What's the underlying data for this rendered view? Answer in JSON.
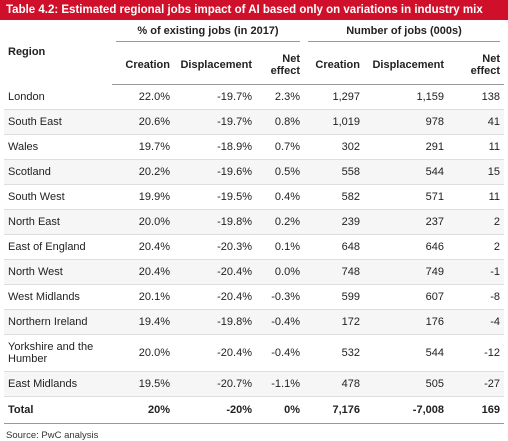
{
  "header": {
    "title": "Table 4.2: Estimated regional jobs impact of AI based only on variations in industry mix"
  },
  "table": {
    "region_header": "Region",
    "groups": [
      "% of existing jobs (in 2017)",
      "Number of jobs (000s)"
    ],
    "columns": [
      "Creation",
      "Displacement",
      "Net effect",
      "Creation",
      "Displacement",
      "Net effect"
    ],
    "rows": [
      [
        "London",
        "22.0%",
        "-19.7%",
        "2.3%",
        "1,297",
        "1,159",
        "138"
      ],
      [
        "South East",
        "20.6%",
        "-19.7%",
        "0.8%",
        "1,019",
        "978",
        "41"
      ],
      [
        "Wales",
        "19.7%",
        "-18.9%",
        "0.7%",
        "302",
        "291",
        "11"
      ],
      [
        "Scotland",
        "20.2%",
        "-19.6%",
        "0.5%",
        "558",
        "544",
        "15"
      ],
      [
        "South West",
        "19.9%",
        "-19.5%",
        "0.4%",
        "582",
        "571",
        "11"
      ],
      [
        "North East",
        "20.0%",
        "-19.8%",
        "0.2%",
        "239",
        "237",
        "2"
      ],
      [
        "East of England",
        "20.4%",
        "-20.3%",
        "0.1%",
        "648",
        "646",
        "2"
      ],
      [
        "North West",
        "20.4%",
        "-20.4%",
        "0.0%",
        "748",
        "749",
        "-1"
      ],
      [
        "West Midlands",
        "20.1%",
        "-20.4%",
        "-0.3%",
        "599",
        "607",
        "-8"
      ],
      [
        "Northern Ireland",
        "19.4%",
        "-19.8%",
        "-0.4%",
        "172",
        "176",
        "-4"
      ],
      [
        "Yorkshire and the Humber",
        "20.0%",
        "-20.4%",
        "-0.4%",
        "532",
        "544",
        "-12"
      ],
      [
        "East Midlands",
        "19.5%",
        "-20.7%",
        "-1.1%",
        "478",
        "505",
        "-27"
      ]
    ],
    "total": [
      "Total",
      "20%",
      "-20%",
      "0%",
      "7,176",
      "-7,008",
      "169"
    ]
  },
  "footer": {
    "source": "Source: PwC analysis"
  }
}
